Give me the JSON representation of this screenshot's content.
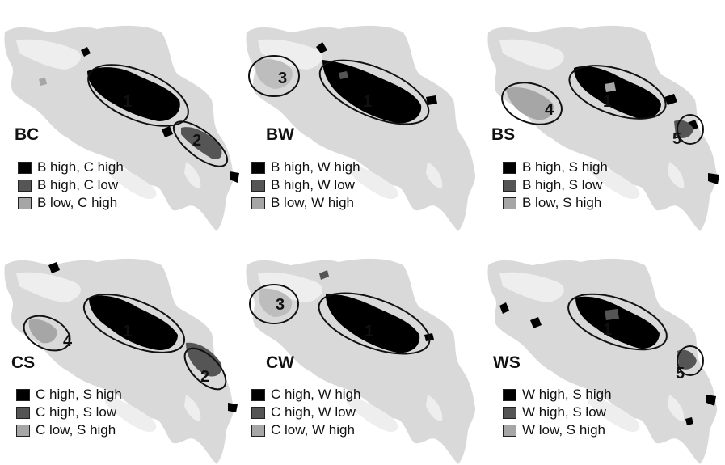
{
  "colors": {
    "land": "#d9d9d9",
    "highland": "#eeeeee",
    "both_high": "#000000",
    "first_high_second_low": "#555555",
    "first_low_second_high": "#a6a6a6",
    "ellipse_stroke": "#111111"
  },
  "panels": [
    {
      "code": "BC",
      "zones": [
        "1",
        "2"
      ],
      "legend": [
        "B high, C high",
        "B high, C low",
        "B low, C high"
      ]
    },
    {
      "code": "BW",
      "zones": [
        "3",
        "1"
      ],
      "legend": [
        "B high, W high",
        "B high, W low",
        "B low, W high"
      ]
    },
    {
      "code": "BS",
      "zones": [
        "4",
        "1",
        "5"
      ],
      "legend": [
        "B high, S high",
        "B high, S low",
        "B low, S high"
      ]
    },
    {
      "code": "CS",
      "zones": [
        "4",
        "1",
        "2"
      ],
      "legend": [
        "C high, S high",
        "C high, S low",
        "C low, S high"
      ]
    },
    {
      "code": "CW",
      "zones": [
        "3",
        "1"
      ],
      "legend": [
        "C high, W high",
        "C high, W low",
        "C low, W high"
      ]
    },
    {
      "code": "WS",
      "zones": [
        "1",
        "5"
      ],
      "legend": [
        "W high, S high",
        "W high, S low",
        "W low, S high"
      ]
    }
  ]
}
